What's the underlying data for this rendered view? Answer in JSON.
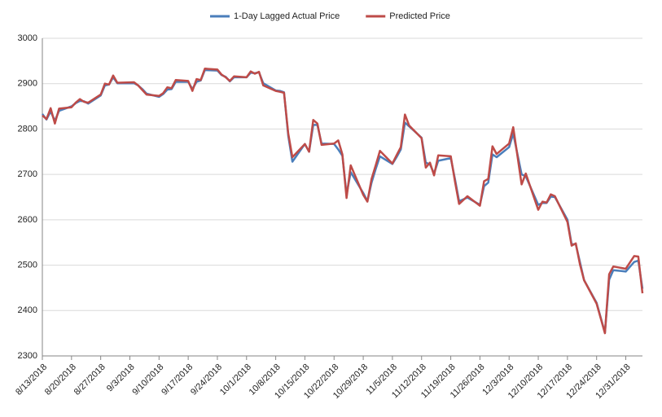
{
  "chart_data": {
    "type": "line",
    "x": [
      "8/13/2018",
      "8/14/2018",
      "8/15/2018",
      "8/16/2018",
      "8/17/2018",
      "8/20/2018",
      "8/21/2018",
      "8/22/2018",
      "8/23/2018",
      "8/24/2018",
      "8/27/2018",
      "8/28/2018",
      "8/29/2018",
      "8/30/2018",
      "8/31/2018",
      "9/4/2018",
      "9/5/2018",
      "9/6/2018",
      "9/7/2018",
      "9/10/2018",
      "9/11/2018",
      "9/12/2018",
      "9/13/2018",
      "9/14/2018",
      "9/17/2018",
      "9/18/2018",
      "9/19/2018",
      "9/20/2018",
      "9/21/2018",
      "9/24/2018",
      "9/25/2018",
      "9/26/2018",
      "9/27/2018",
      "9/28/2018",
      "10/1/2018",
      "10/2/2018",
      "10/3/2018",
      "10/4/2018",
      "10/5/2018",
      "10/8/2018",
      "10/9/2018",
      "10/10/2018",
      "10/11/2018",
      "10/12/2018",
      "10/15/2018",
      "10/16/2018",
      "10/17/2018",
      "10/18/2018",
      "10/19/2018",
      "10/22/2018",
      "10/23/2018",
      "10/24/2018",
      "10/25/2018",
      "10/26/2018",
      "10/29/2018",
      "10/30/2018",
      "10/31/2018",
      "11/1/2018",
      "11/2/2018",
      "11/5/2018",
      "11/6/2018",
      "11/7/2018",
      "11/8/2018",
      "11/9/2018",
      "11/12/2018",
      "11/13/2018",
      "11/14/2018",
      "11/15/2018",
      "11/16/2018",
      "11/19/2018",
      "11/20/2018",
      "11/21/2018",
      "11/23/2018",
      "11/26/2018",
      "11/27/2018",
      "11/28/2018",
      "11/29/2018",
      "11/30/2018",
      "12/3/2018",
      "12/4/2018",
      "12/6/2018",
      "12/7/2018",
      "12/10/2018",
      "12/11/2018",
      "12/12/2018",
      "12/13/2018",
      "12/14/2018",
      "12/17/2018",
      "12/18/2018",
      "12/19/2018",
      "12/20/2018",
      "12/21/2018",
      "12/24/2018",
      "12/26/2018",
      "12/27/2018",
      "12/28/2018",
      "12/31/2018",
      "1/2/2019",
      "1/3/2019",
      "1/4/2019"
    ],
    "series": [
      {
        "name": "1-Day Lagged Actual Price",
        "color": "#4a7ebb",
        "values": [
          2833,
          2821,
          2839,
          2818,
          2840,
          2850,
          2857,
          2862,
          2861,
          2856,
          2874,
          2896,
          2898,
          2914,
          2901,
          2901,
          2896,
          2888,
          2878,
          2871,
          2877,
          2887,
          2888,
          2904,
          2904,
          2888,
          2904,
          2907,
          2930,
          2929,
          2919,
          2915,
          2905,
          2914,
          2914,
          2924,
          2923,
          2925,
          2901,
          2885,
          2884,
          2881,
          2785,
          2728,
          2767,
          2750,
          2809,
          2809,
          2768,
          2767,
          2755,
          2741,
          2656,
          2705,
          2659,
          2641,
          2682,
          2712,
          2740,
          2723,
          2738,
          2755,
          2814,
          2806,
          2781,
          2726,
          2722,
          2702,
          2730,
          2736,
          2690,
          2641,
          2649,
          2633,
          2674,
          2682,
          2744,
          2738,
          2760,
          2790,
          2700,
          2696,
          2633,
          2637,
          2637,
          2651,
          2650,
          2600,
          2546,
          2546,
          2507,
          2467,
          2417,
          2351,
          2468,
          2489,
          2486,
          2507,
          2510,
          2448
        ]
      },
      {
        "name": "Predicted Price",
        "color": "#be4b48",
        "values": [
          2830,
          2822,
          2846,
          2812,
          2845,
          2848,
          2858,
          2866,
          2860,
          2858,
          2876,
          2900,
          2898,
          2918,
          2902,
          2903,
          2896,
          2886,
          2876,
          2873,
          2879,
          2892,
          2890,
          2908,
          2906,
          2884,
          2910,
          2908,
          2933,
          2931,
          2920,
          2914,
          2906,
          2916,
          2914,
          2927,
          2922,
          2926,
          2896,
          2884,
          2882,
          2880,
          2790,
          2738,
          2767,
          2750,
          2820,
          2812,
          2765,
          2768,
          2775,
          2744,
          2648,
          2720,
          2655,
          2640,
          2690,
          2720,
          2752,
          2724,
          2742,
          2760,
          2832,
          2808,
          2780,
          2715,
          2726,
          2698,
          2742,
          2740,
          2685,
          2635,
          2652,
          2631,
          2685,
          2690,
          2762,
          2745,
          2768,
          2804,
          2678,
          2702,
          2622,
          2640,
          2638,
          2656,
          2652,
          2595,
          2543,
          2548,
          2502,
          2467,
          2415,
          2350,
          2480,
          2497,
          2492,
          2520,
          2519,
          2438
        ]
      }
    ],
    "xlim": [
      "8/13/2018",
      "1/4/2019"
    ],
    "xticks": [
      "8/13/2018",
      "8/20/2018",
      "8/27/2018",
      "9/3/2018",
      "9/10/2018",
      "9/17/2018",
      "9/24/2018",
      "10/1/2018",
      "10/8/2018",
      "10/15/2018",
      "10/22/2018",
      "10/29/2018",
      "11/5/2018",
      "11/12/2018",
      "11/19/2018",
      "11/26/2018",
      "12/3/2018",
      "12/10/2018",
      "12/17/2018",
      "12/24/2018",
      "12/31/2018"
    ],
    "ylim": [
      2300,
      3000
    ],
    "yticks": [
      2300,
      2400,
      2500,
      2600,
      2700,
      2800,
      2900,
      3000
    ],
    "grid": true,
    "legend": "top"
  }
}
